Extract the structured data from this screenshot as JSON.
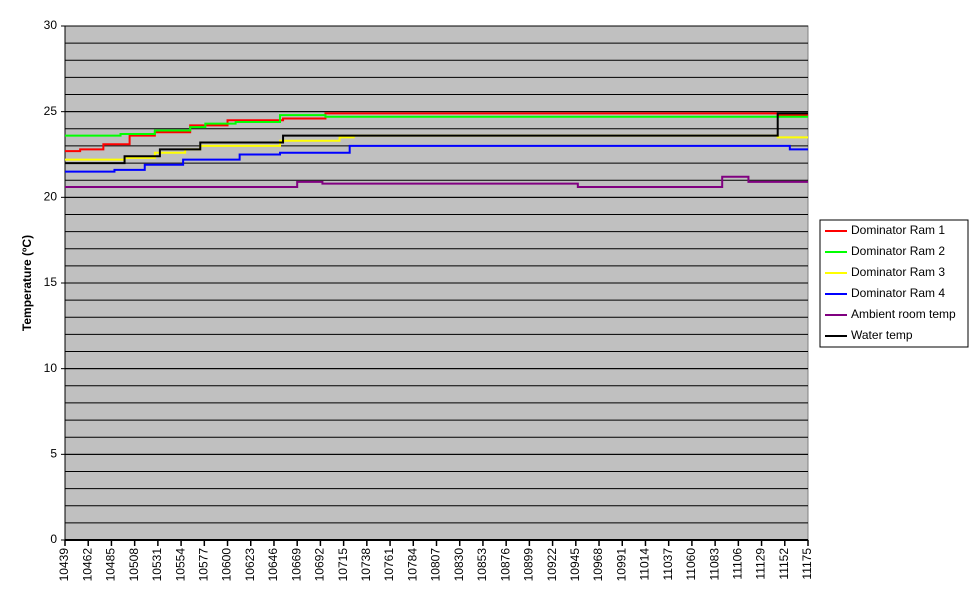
{
  "chart_data": {
    "type": "line",
    "y_label": "Temperature (ºC)",
    "xlim": [
      10439,
      11175
    ],
    "xticks": [
      10439,
      10462,
      10485,
      10508,
      10531,
      10554,
      10577,
      10600,
      10623,
      10646,
      10669,
      10692,
      10715,
      10738,
      10761,
      10784,
      10807,
      10830,
      10853,
      10876,
      10899,
      10922,
      10945,
      10968,
      10991,
      11014,
      11037,
      11060,
      11083,
      11106,
      11129,
      11152,
      11175
    ],
    "ylim": [
      0,
      30
    ],
    "yticks": [
      0,
      5,
      10,
      15,
      20,
      25,
      30
    ],
    "grid": true,
    "ygrid_step": 1,
    "legend": "right",
    "series": [
      {
        "name": "Dominator Ram 1",
        "color": "#ff0000",
        "x": [
          10439,
          10454,
          10454,
          10477,
          10477,
          10503,
          10503,
          10528,
          10528,
          10563,
          10563,
          10600,
          10600,
          10655,
          10655,
          10697,
          10697,
          11145,
          11145,
          11175
        ],
        "values": [
          22.7,
          22.7,
          22.8,
          22.8,
          23.1,
          23.1,
          23.6,
          23.6,
          23.8,
          23.8,
          24.2,
          24.2,
          24.5,
          24.5,
          24.6,
          24.6,
          24.9,
          24.9,
          24.8,
          24.8
        ]
      },
      {
        "name": "Dominator Ram 2",
        "color": "#00ff00",
        "x": [
          10439,
          10494,
          10494,
          10528,
          10528,
          10563,
          10563,
          10578,
          10578,
          10608,
          10608,
          10652,
          10652,
          10697,
          10697,
          11175
        ],
        "values": [
          23.6,
          23.6,
          23.7,
          23.7,
          23.9,
          23.9,
          24.1,
          24.1,
          24.3,
          24.3,
          24.4,
          24.4,
          24.8,
          24.8,
          24.7,
          24.7
        ]
      },
      {
        "name": "Dominator Ram 3",
        "color": "#ffff00",
        "x": [
          10439,
          10498,
          10498,
          10528,
          10528,
          10558,
          10558,
          10573,
          10573,
          10652,
          10652,
          10711,
          10711,
          10725,
          10725,
          11145,
          11145,
          11175
        ],
        "values": [
          22.2,
          22.2,
          22.3,
          22.3,
          22.6,
          22.6,
          22.8,
          22.8,
          23.0,
          23.0,
          23.3,
          23.3,
          23.5,
          23.5,
          23.6,
          23.6,
          23.5,
          23.5
        ]
      },
      {
        "name": "Dominator Ram 4",
        "color": "#0000ff",
        "x": [
          10439,
          10488,
          10488,
          10518,
          10518,
          10556,
          10556,
          10612,
          10612,
          10652,
          10652,
          10721,
          10721,
          11157,
          11157,
          11175
        ],
        "values": [
          21.5,
          21.5,
          21.6,
          21.6,
          21.9,
          21.9,
          22.2,
          22.2,
          22.5,
          22.5,
          22.6,
          22.6,
          23.0,
          23.0,
          22.8,
          22.8
        ]
      },
      {
        "name": "Ambient room temp",
        "color": "#800080",
        "x": [
          10439,
          10669,
          10669,
          10694,
          10694,
          10947,
          10947,
          11090,
          11090,
          11116,
          11116,
          11175
        ],
        "values": [
          20.6,
          20.6,
          20.9,
          20.9,
          20.8,
          20.8,
          20.6,
          20.6,
          21.2,
          21.2,
          20.9,
          20.9
        ]
      },
      {
        "name": "Water temp",
        "color": "#000000",
        "x": [
          10439,
          10498,
          10498,
          10533,
          10533,
          10573,
          10573,
          10655,
          10655,
          11145,
          11145,
          11175
        ],
        "values": [
          22.0,
          22.0,
          22.4,
          22.4,
          22.8,
          22.8,
          23.2,
          23.2,
          23.6,
          23.6,
          24.9,
          24.9
        ]
      }
    ]
  }
}
